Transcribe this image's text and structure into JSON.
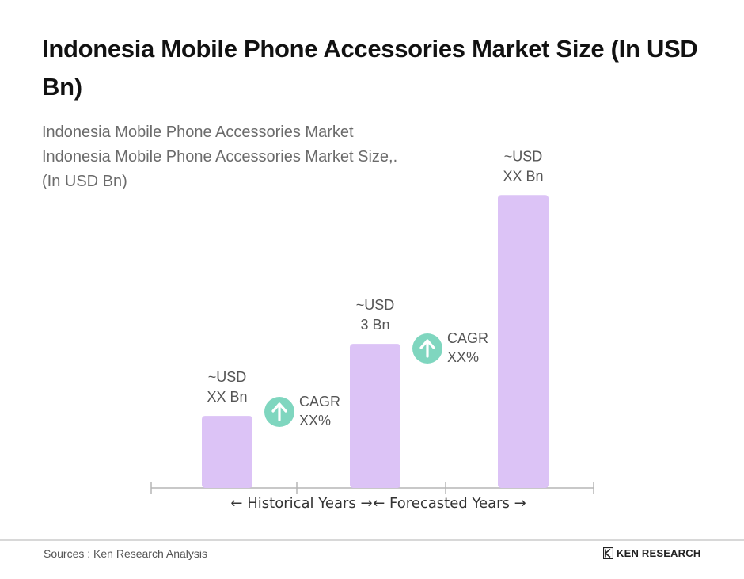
{
  "header": {
    "title": "Indonesia Mobile Phone Accessories Market Size (In USD Bn)",
    "subtitle_lines": [
      "Indonesia Mobile Phone Accessories Market",
      "Indonesia Mobile Phone Accessories Market Size,.",
      "(In USD Bn)"
    ]
  },
  "footer": {
    "sources": "Sources : Ken Research Analysis",
    "logo_text": "KEN RESEARCH"
  },
  "colors": {
    "bar": "#dcc3f6",
    "cagr_circle": "#7fd6bf",
    "axis": "#b5b5b5",
    "label_text": "#555555"
  },
  "chart_data": {
    "type": "bar",
    "title": "Indonesia Mobile Phone Accessories Market Size (In USD Bn)",
    "categories": [
      "",
      "",
      ""
    ],
    "series": [
      {
        "values": [
          1.5,
          3,
          6.1
        ]
      }
    ],
    "data_labels": [
      [
        "~USD",
        "XX Bn"
      ],
      [
        "~USD",
        "3 Bn"
      ],
      [
        "~USD",
        "XX Bn"
      ]
    ],
    "cagr_annotations": [
      {
        "lines": [
          "CAGR",
          "XX%"
        ],
        "icon": "arrow-up-icon"
      },
      {
        "lines": [
          "CAGR",
          "XX%"
        ],
        "icon": "arrow-up-icon"
      }
    ],
    "axis_labels": [
      "Historical Years",
      "Forecasted Years"
    ],
    "ylim": [
      0,
      6.6
    ],
    "grid": false,
    "legend": "none"
  }
}
